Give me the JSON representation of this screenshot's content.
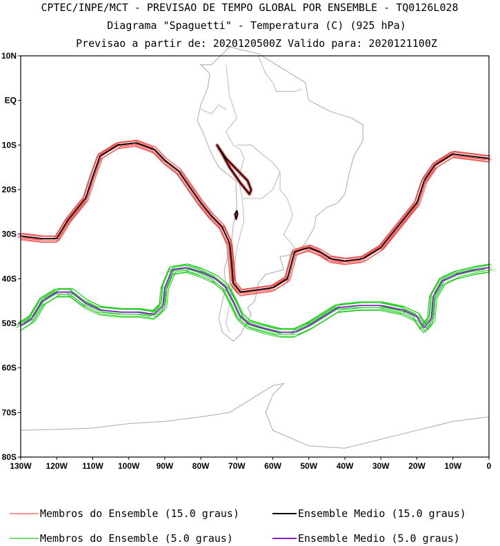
{
  "header": {
    "line1": "CPTEC/INPE/MCT - PREVISAO DE TEMPO GLOBAL POR ENSEMBLE - TQ0126L028",
    "line2": "Diagrama \"Spaguetti\" - Temperatura (C) (925 hPa)",
    "line3": "Previsao a partir de: 2020120500Z  Valido para: 2020121100Z"
  },
  "axes": {
    "lon_range": [
      -130,
      0
    ],
    "lat_range": [
      -80,
      10
    ],
    "lon_ticks": [
      {
        "value": -130,
        "label": "130W"
      },
      {
        "value": -120,
        "label": "120W"
      },
      {
        "value": -110,
        "label": "110W"
      },
      {
        "value": -100,
        "label": "100W"
      },
      {
        "value": -90,
        "label": "90W"
      },
      {
        "value": -80,
        "label": "80W"
      },
      {
        "value": -70,
        "label": "70W"
      },
      {
        "value": -60,
        "label": "60W"
      },
      {
        "value": -50,
        "label": "50W"
      },
      {
        "value": -40,
        "label": "40W"
      },
      {
        "value": -30,
        "label": "30W"
      },
      {
        "value": -20,
        "label": "20W"
      },
      {
        "value": -10,
        "label": "10W"
      },
      {
        "value": 0,
        "label": "0"
      }
    ],
    "lat_ticks": [
      {
        "value": 10,
        "label": "10N"
      },
      {
        "value": 0,
        "label": "EQ"
      },
      {
        "value": -10,
        "label": "10S"
      },
      {
        "value": -20,
        "label": "20S"
      },
      {
        "value": -30,
        "label": "30S"
      },
      {
        "value": -40,
        "label": "40S"
      },
      {
        "value": -50,
        "label": "50S"
      },
      {
        "value": -60,
        "label": "60S"
      },
      {
        "value": -70,
        "label": "70S"
      },
      {
        "value": -80,
        "label": "80S"
      }
    ]
  },
  "colors": {
    "member15": "#f05050",
    "mean15": "#000000",
    "member5": "#22cc22",
    "mean5": "#8a1fd0",
    "land": "#a8a8a8"
  },
  "legend": {
    "member15_label": "Membros do Ensemble (15.0 graus)",
    "mean15_label": "Ensemble Medio (15.0 graus)",
    "member5_label": "Membros do Ensemble (5.0 graus)",
    "mean5_label": "Ensemble Medio (5.0 graus)"
  },
  "contours": {
    "ensemble_members": 10,
    "iso15_main": [
      [
        -130,
        -30.4
      ],
      [
        -124,
        -31
      ],
      [
        -120,
        -31
      ],
      [
        -117,
        -27
      ],
      [
        -112,
        -22
      ],
      [
        -110,
        -17
      ],
      [
        -108,
        -12.5
      ],
      [
        -103,
        -10
      ],
      [
        -98,
        -9.5
      ],
      [
        -93,
        -11
      ],
      [
        -90,
        -13.5
      ],
      [
        -86,
        -16
      ],
      [
        -83,
        -19.5
      ],
      [
        -80,
        -23
      ],
      [
        -77,
        -26
      ],
      [
        -74,
        -28.5
      ],
      [
        -72,
        -32
      ],
      [
        -71.5,
        -36
      ],
      [
        -71,
        -41
      ],
      [
        -69,
        -43
      ],
      [
        -60,
        -42
      ],
      [
        -56,
        -40
      ],
      [
        -55,
        -37
      ],
      [
        -54,
        -34
      ],
      [
        -50,
        -33
      ],
      [
        -47,
        -34
      ],
      [
        -44,
        -35.5
      ],
      [
        -40,
        -36
      ],
      [
        -35,
        -35.5
      ],
      [
        -30,
        -33
      ],
      [
        -25,
        -28
      ],
      [
        -20,
        -23
      ],
      [
        -18,
        -18
      ],
      [
        -15,
        -14.5
      ],
      [
        -10,
        -12
      ],
      [
        -5,
        -12.5
      ],
      [
        0,
        -13
      ]
    ],
    "iso15_andes": [
      [
        -75.5,
        -10
      ],
      [
        -73,
        -13
      ],
      [
        -70,
        -15.5
      ],
      [
        -67,
        -18
      ],
      [
        -66,
        -20
      ],
      [
        -66.5,
        -21
      ],
      [
        -69,
        -18.5
      ],
      [
        -72,
        -15
      ],
      [
        -74,
        -12
      ],
      [
        -75.5,
        -10
      ]
    ],
    "iso15_coast": [
      [
        -70.5,
        -25.5
      ],
      [
        -70,
        -24.8
      ],
      [
        -69.8,
        -25.5
      ],
      [
        -70.2,
        -26.6
      ],
      [
        -70.5,
        -25.5
      ]
    ],
    "iso5_main": [
      [
        -130,
        -50.5
      ],
      [
        -127,
        -49
      ],
      [
        -124,
        -45
      ],
      [
        -120,
        -43
      ],
      [
        -116,
        -43
      ],
      [
        -112,
        -45.5
      ],
      [
        -108,
        -47
      ],
      [
        -102,
        -47.5
      ],
      [
        -97,
        -47.5
      ],
      [
        -93,
        -48
      ],
      [
        -90.5,
        -46
      ],
      [
        -90,
        -42
      ],
      [
        -88,
        -38
      ],
      [
        -84,
        -37.5
      ],
      [
        -80,
        -38.5
      ],
      [
        -76,
        -40
      ],
      [
        -73,
        -42
      ],
      [
        -71,
        -45
      ],
      [
        -69,
        -48.5
      ],
      [
        -67,
        -50
      ],
      [
        -63,
        -51
      ],
      [
        -58,
        -52
      ],
      [
        -54,
        -52
      ],
      [
        -50,
        -50.5
      ],
      [
        -46,
        -48.5
      ],
      [
        -42,
        -46.5
      ],
      [
        -36,
        -46
      ],
      [
        -30,
        -46
      ],
      [
        -24,
        -47
      ],
      [
        -20,
        -48.5
      ],
      [
        -18,
        -51
      ],
      [
        -16,
        -49
      ],
      [
        -15.5,
        -44
      ],
      [
        -13,
        -40.5
      ],
      [
        -9,
        -39
      ],
      [
        -4,
        -38
      ],
      [
        0,
        -37.5
      ]
    ]
  }
}
